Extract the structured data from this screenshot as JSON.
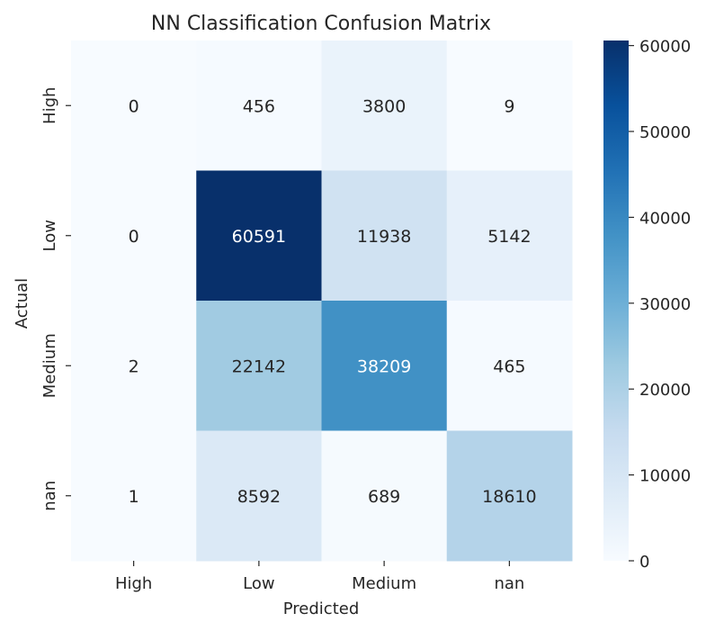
{
  "chart_data": {
    "type": "heatmap",
    "title": "NN Classification Confusion Matrix",
    "xlabel": "Predicted",
    "ylabel": "Actual",
    "x_categories": [
      "High",
      "Low",
      "Medium",
      "nan"
    ],
    "y_categories": [
      "High",
      "Low",
      "Medium",
      "nan"
    ],
    "values": [
      [
        0,
        456,
        3800,
        9
      ],
      [
        0,
        60591,
        11938,
        5142
      ],
      [
        2,
        22142,
        38209,
        465
      ],
      [
        1,
        8592,
        689,
        18610
      ]
    ],
    "colorbar": {
      "vmin": 0,
      "vmax": 60591,
      "ticks": [
        0,
        10000,
        20000,
        30000,
        40000,
        50000,
        60000
      ],
      "colormap": "Blues"
    },
    "grid": false,
    "legend": "colorbar-right"
  }
}
